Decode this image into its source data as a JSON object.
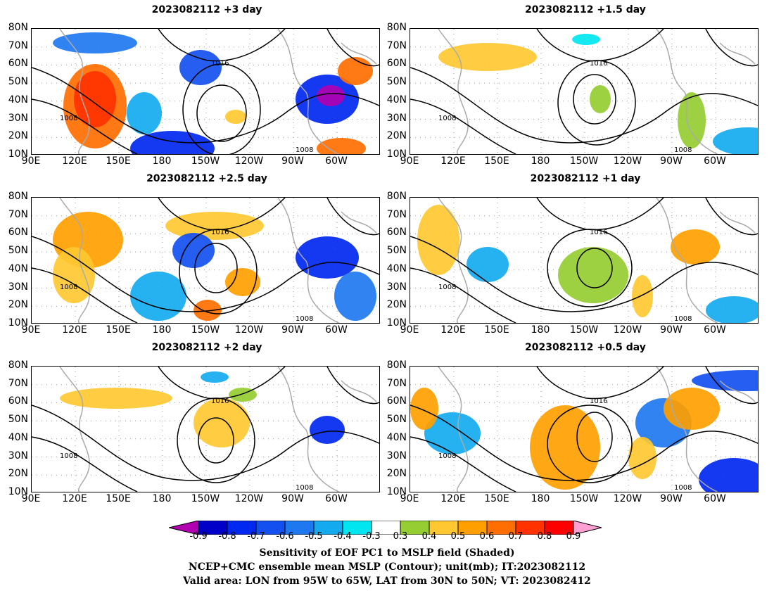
{
  "panels": [
    {
      "title": "2023082112 +3 day"
    },
    {
      "title": "2023082112 +1.5 day"
    },
    {
      "title": "2023082112 +2.5 day"
    },
    {
      "title": "2023082112 +1 day"
    },
    {
      "title": "2023082112 +2 day"
    },
    {
      "title": "2023082112 +0.5 day"
    }
  ],
  "lat_labels": [
    "80N",
    "70N",
    "60N",
    "50N",
    "40N",
    "30N",
    "20N",
    "10N"
  ],
  "lon_labels": [
    "90E",
    "120E",
    "150E",
    "180",
    "150W",
    "120W",
    "90W",
    "60W"
  ],
  "isobar_labels": [
    "1016",
    "1008"
  ],
  "colorbar": {
    "labels": [
      "-0.9",
      "-0.8",
      "-0.7",
      "-0.6",
      "-0.5",
      "-0.4",
      "-0.3",
      "0.3",
      "0.4",
      "0.5",
      "0.6",
      "0.7",
      "0.8",
      "0.9"
    ],
    "colors": [
      "#b000b0",
      "#0000c8",
      "#0028f0",
      "#1450f0",
      "#1e78f0",
      "#14aaf0",
      "#00e6f0",
      "#ffffff",
      "#96cd32",
      "#ffc832",
      "#ffa000",
      "#ff6e00",
      "#ff3200",
      "#ff0000",
      "#ffa0d2"
    ]
  },
  "captions": {
    "line1": "Sensitivity of EOF PC1 to MSLP field (Shaded)",
    "line2": "NCEP+CMC ensemble mean MSLP (Contour); unit(mb); IT:2023082112",
    "line3": "Valid area: LON from 95W to 65W, LAT from 30N to 50N; VT: 2023082412"
  }
}
